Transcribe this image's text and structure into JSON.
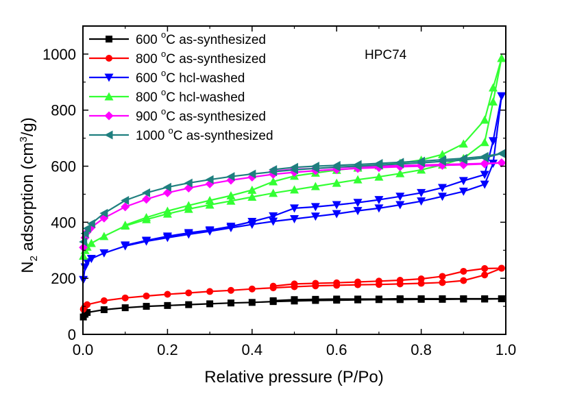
{
  "chart_data": {
    "type": "line",
    "title": "",
    "annotation": "HPC74",
    "xlabel": "Relative pressure (P/Po)",
    "ylabel": {
      "prefix": "N",
      "sub": "2",
      "mid": " adsorption (cm",
      "sup": "3",
      "suffix": "/g)"
    },
    "xlim": [
      0.0,
      1.0
    ],
    "ylim": [
      0,
      1100
    ],
    "x_ticks": [
      0.0,
      0.2,
      0.4,
      0.6,
      0.8,
      1.0
    ],
    "x_tick_labels": [
      "0.0",
      "0.2",
      "0.4",
      "0.6",
      "0.8",
      "1.0"
    ],
    "y_ticks": [
      0,
      200,
      400,
      600,
      800,
      1000
    ],
    "y_tick_labels": [
      "0",
      "200",
      "400",
      "600",
      "800",
      "1000"
    ],
    "grid": false,
    "legend_position": "top-left",
    "series": [
      {
        "name_parts": [
          "600 ",
          "o",
          "C as-synthesized"
        ],
        "color": "#000000",
        "marker": "square",
        "adsorption": {
          "x": [
            0.001,
            0.005,
            0.01,
            0.05,
            0.1,
            0.15,
            0.2,
            0.25,
            0.3,
            0.35,
            0.4,
            0.45,
            0.5,
            0.55,
            0.6,
            0.65,
            0.7,
            0.75,
            0.8,
            0.85,
            0.9,
            0.95,
            0.99
          ],
          "y": [
            62,
            72,
            78,
            88,
            95,
            100,
            103,
            106,
            109,
            112,
            114,
            117,
            119,
            121,
            122,
            123,
            124,
            124,
            125,
            125,
            126,
            126,
            127
          ]
        },
        "desorption": {
          "x": [
            0.99,
            0.95,
            0.9,
            0.85,
            0.8,
            0.75,
            0.7,
            0.65,
            0.6,
            0.55,
            0.5,
            0.45
          ],
          "y": [
            127,
            127,
            127,
            127,
            127,
            127,
            126,
            126,
            126,
            125,
            124,
            120
          ]
        }
      },
      {
        "name_parts": [
          "800 ",
          "o",
          "C as-synthesized"
        ],
        "color": "#ff0000",
        "marker": "circle",
        "adsorption": {
          "x": [
            0.001,
            0.005,
            0.01,
            0.05,
            0.1,
            0.15,
            0.2,
            0.25,
            0.3,
            0.35,
            0.4,
            0.45,
            0.5,
            0.55,
            0.6,
            0.65,
            0.7,
            0.75,
            0.8,
            0.85,
            0.9,
            0.95,
            0.99
          ],
          "y": [
            90,
            100,
            106,
            120,
            130,
            137,
            143,
            148,
            153,
            157,
            162,
            166,
            170,
            173,
            175,
            177,
            178,
            180,
            182,
            185,
            192,
            212,
            236
          ]
        },
        "desorption": {
          "x": [
            0.99,
            0.95,
            0.9,
            0.85,
            0.8,
            0.75,
            0.7,
            0.65,
            0.6,
            0.55,
            0.5,
            0.45
          ],
          "y": [
            236,
            235,
            225,
            207,
            198,
            193,
            190,
            187,
            184,
            182,
            180,
            172
          ]
        }
      },
      {
        "name_parts": [
          "600 ",
          "o",
          "C hcl-washed"
        ],
        "color": "#0000ff",
        "marker": "triangle-down",
        "adsorption": {
          "x": [
            0.001,
            0.005,
            0.01,
            0.02,
            0.05,
            0.1,
            0.15,
            0.2,
            0.25,
            0.3,
            0.35,
            0.4,
            0.45,
            0.5,
            0.55,
            0.6,
            0.65,
            0.7,
            0.75,
            0.8,
            0.85,
            0.9,
            0.95,
            0.97,
            0.99
          ],
          "y": [
            195,
            240,
            258,
            270,
            290,
            315,
            332,
            345,
            357,
            368,
            380,
            392,
            403,
            412,
            421,
            430,
            441,
            450,
            462,
            475,
            492,
            510,
            535,
            610,
            850
          ]
        },
        "desorption": {
          "x": [
            0.99,
            0.97,
            0.95,
            0.9,
            0.85,
            0.8,
            0.75,
            0.7,
            0.65,
            0.6,
            0.55,
            0.5,
            0.45,
            0.4,
            0.35,
            0.3,
            0.25,
            0.2,
            0.15,
            0.1
          ],
          "y": [
            850,
            690,
            570,
            548,
            523,
            505,
            492,
            480,
            470,
            462,
            455,
            450,
            422,
            402,
            385,
            372,
            362,
            350,
            335,
            318
          ]
        }
      },
      {
        "name_parts": [
          "800 ",
          "o",
          "C hcl-washed"
        ],
        "color": "#33ff33",
        "marker": "triangle-up",
        "adsorption": {
          "x": [
            0.001,
            0.005,
            0.01,
            0.02,
            0.05,
            0.1,
            0.15,
            0.2,
            0.25,
            0.3,
            0.35,
            0.4,
            0.45,
            0.5,
            0.55,
            0.6,
            0.65,
            0.7,
            0.75,
            0.8,
            0.85,
            0.9,
            0.95,
            0.97,
            0.99
          ],
          "y": [
            280,
            300,
            312,
            325,
            350,
            387,
            410,
            430,
            447,
            462,
            476,
            490,
            504,
            516,
            528,
            540,
            552,
            562,
            574,
            587,
            605,
            628,
            685,
            830,
            985
          ]
        },
        "desorption": {
          "x": [
            0.99,
            0.97,
            0.95,
            0.9,
            0.85,
            0.8,
            0.75,
            0.7,
            0.65,
            0.6,
            0.55,
            0.5,
            0.45,
            0.4,
            0.35,
            0.3,
            0.25,
            0.2,
            0.15,
            0.1
          ],
          "y": [
            985,
            880,
            765,
            680,
            642,
            622,
            611,
            602,
            594,
            586,
            576,
            565,
            545,
            515,
            495,
            478,
            460,
            440,
            417,
            390
          ]
        }
      },
      {
        "name_parts": [
          "900 ",
          "o",
          "C as-synthesized"
        ],
        "color": "#ff00ff",
        "marker": "diamond",
        "adsorption": {
          "x": [
            0.001,
            0.005,
            0.01,
            0.02,
            0.05,
            0.1,
            0.15,
            0.2,
            0.25,
            0.3,
            0.35,
            0.4,
            0.45,
            0.5,
            0.55,
            0.6,
            0.65,
            0.7,
            0.75,
            0.8,
            0.85,
            0.9,
            0.95,
            0.99
          ],
          "y": [
            310,
            345,
            365,
            382,
            415,
            455,
            482,
            505,
            522,
            537,
            550,
            561,
            571,
            578,
            584,
            588,
            592,
            595,
            598,
            600,
            603,
            605,
            608,
            612
          ]
        },
        "desorption": {
          "x": [
            0.99,
            0.95,
            0.9,
            0.85,
            0.8,
            0.75,
            0.7,
            0.65,
            0.6,
            0.55,
            0.5,
            0.45
          ],
          "y": [
            612,
            610,
            608,
            606,
            604,
            602,
            600,
            598,
            595,
            592,
            589,
            582
          ]
        }
      },
      {
        "name_parts": [
          "1000 ",
          "o",
          "C as-synthesized"
        ],
        "color": "#1f7f7f",
        "marker": "triangle-left",
        "adsorption": {
          "x": [
            0.001,
            0.005,
            0.01,
            0.02,
            0.05,
            0.1,
            0.15,
            0.2,
            0.25,
            0.3,
            0.35,
            0.4,
            0.45,
            0.5,
            0.55,
            0.6,
            0.65,
            0.7,
            0.75,
            0.8,
            0.85,
            0.9,
            0.95,
            0.99
          ],
          "y": [
            330,
            360,
            378,
            395,
            432,
            478,
            505,
            525,
            540,
            552,
            563,
            572,
            580,
            587,
            592,
            597,
            600,
            604,
            608,
            612,
            617,
            622,
            630,
            645
          ]
        },
        "desorption": {
          "x": [
            0.99,
            0.95,
            0.9,
            0.85,
            0.8,
            0.75,
            0.7,
            0.65,
            0.6,
            0.55,
            0.5,
            0.45
          ],
          "y": [
            645,
            635,
            628,
            623,
            618,
            614,
            610,
            606,
            603,
            600,
            596,
            588
          ]
        }
      }
    ]
  }
}
